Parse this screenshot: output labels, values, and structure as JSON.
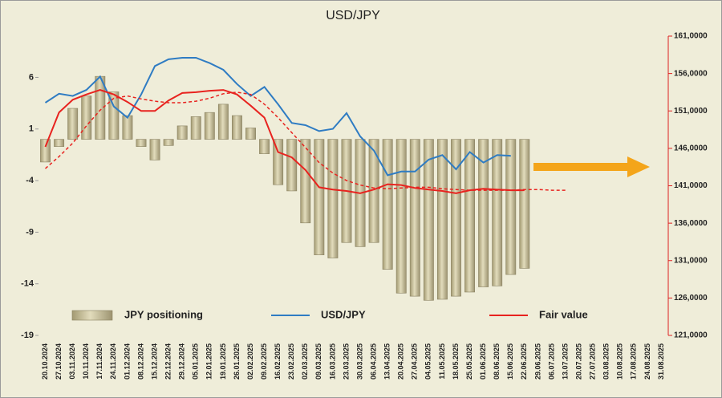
{
  "chart_data": {
    "type": "bar",
    "title": "USD/JPY",
    "categories": [
      "20.10.2024",
      "27.10.2024",
      "03.11.2024",
      "10.11.2024",
      "17.11.2024",
      "24.11.2024",
      "01.12.2024",
      "08.12.2024",
      "15.12.2024",
      "22.12.2024",
      "29.12.2024",
      "05.01.2025",
      "12.01.2025",
      "19.01.2025",
      "26.01.2025",
      "02.02.2025",
      "09.02.2025",
      "16.02.2025",
      "23.02.2025",
      "02.03.2025",
      "09.03.2025",
      "16.03.2025",
      "23.03.2025",
      "30.03.2025",
      "06.04.2025",
      "13.04.2025",
      "20.04.2025",
      "27.04.2025",
      "04.05.2025",
      "11.05.2025",
      "18.05.2025",
      "25.05.2025",
      "01.06.2025",
      "08.06.2025",
      "15.06.2025",
      "22.06.2025",
      "29.06.2025",
      "06.07.2025",
      "13.07.2025",
      "20.07.2025",
      "27.07.2025",
      "03.08.2025",
      "10.08.2025",
      "17.08.2025",
      "24.08.2025",
      "31.08.2025"
    ],
    "ylim": [
      -19,
      10
    ],
    "yticks": [
      6,
      1,
      -4,
      -9,
      -14,
      -19
    ],
    "y2lim": [
      121000,
      161000
    ],
    "y2ticks": [
      {
        "value": 161000,
        "label": "161,0000"
      },
      {
        "value": 156000,
        "label": "156,0000"
      },
      {
        "value": 151000,
        "label": "151,0000"
      },
      {
        "value": 146000,
        "label": "146,0000"
      },
      {
        "value": 141000,
        "label": "141,0000"
      },
      {
        "value": 136000,
        "label": "136,0000"
      },
      {
        "value": 131000,
        "label": "131,0000"
      },
      {
        "value": 126000,
        "label": "126,0000"
      },
      {
        "value": 121000,
        "label": "121,0000"
      }
    ],
    "series": [
      {
        "name": "JPY positioning",
        "type": "bar",
        "axis": "y",
        "color": "#c9c19b",
        "values": [
          -2.2,
          -0.7,
          3.0,
          4.2,
          6.1,
          4.6,
          2.3,
          -0.7,
          -2.0,
          -0.6,
          1.3,
          2.2,
          2.6,
          3.4,
          2.3,
          1.1,
          -1.4,
          -4.4,
          -5.0,
          -8.1,
          -11.2,
          -11.5,
          -10.0,
          -10.4,
          -10.0,
          -12.6,
          -14.9,
          -15.2,
          -15.6,
          -15.5,
          -15.2,
          -14.8,
          -14.3,
          -14.2,
          -13.1,
          -12.5,
          null,
          null,
          null,
          null,
          null,
          null,
          null,
          null,
          null,
          null
        ]
      },
      {
        "name": "USD/JPY",
        "type": "line",
        "axis": "y2",
        "color": "#2f7cc3",
        "values": [
          152100,
          153300,
          153000,
          153800,
          155600,
          151600,
          150100,
          153200,
          157000,
          157900,
          158100,
          158100,
          157400,
          156500,
          154600,
          153000,
          154200,
          151900,
          149400,
          149100,
          148300,
          148600,
          150700,
          147600,
          145700,
          142400,
          142900,
          142900,
          144500,
          145100,
          143200,
          145500,
          144100,
          145100,
          145000,
          null,
          null,
          null,
          null,
          null,
          null,
          null,
          null,
          null,
          null,
          null
        ]
      },
      {
        "name": "Fair value",
        "type": "line",
        "axis": "y2",
        "color": "#e8231f",
        "values": [
          146200,
          150800,
          152500,
          153200,
          153800,
          153200,
          152200,
          151000,
          151000,
          152400,
          153400,
          153500,
          153700,
          153800,
          153200,
          151700,
          150100,
          145500,
          144800,
          143100,
          140800,
          140500,
          140300,
          140000,
          140500,
          141200,
          141100,
          140700,
          140500,
          140300,
          140000,
          140400,
          140600,
          140500,
          140400,
          140400,
          null,
          null,
          null,
          null,
          null,
          null,
          null,
          null,
          null,
          null
        ]
      },
      {
        "type": "line",
        "dashed": true,
        "axis": "y2",
        "color": "#e8231f",
        "values": [
          143300,
          144900,
          146700,
          149000,
          151100,
          152700,
          153000,
          152600,
          152300,
          152100,
          152100,
          152300,
          152700,
          153300,
          153500,
          153200,
          151900,
          150100,
          148100,
          146100,
          144100,
          142700,
          141700,
          141100,
          140700,
          140600,
          140700,
          140800,
          140800,
          140600,
          140500,
          140400,
          140400,
          140400,
          140400,
          140500,
          140500,
          140400,
          140400,
          null,
          null,
          null,
          null,
          null,
          null,
          null
        ]
      }
    ]
  }
}
